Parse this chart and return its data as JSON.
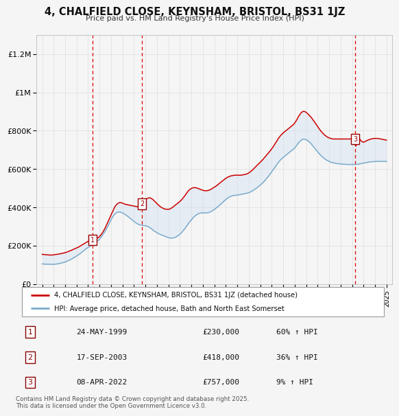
{
  "title": "4, CHALFIELD CLOSE, KEYNSHAM, BRISTOL, BS31 1JZ",
  "subtitle": "Price paid vs. HM Land Registry's House Price Index (HPI)",
  "ylabel_ticks": [
    "£0",
    "£200K",
    "£400K",
    "£600K",
    "£800K",
    "£1M",
    "£1.2M"
  ],
  "ytick_values": [
    0,
    200000,
    400000,
    600000,
    800000,
    1000000,
    1200000
  ],
  "ylim": [
    0,
    1300000
  ],
  "xlim_start": 1994.5,
  "xlim_end": 2025.5,
  "sale_dates": [
    1999.38,
    2003.71,
    2022.27
  ],
  "sale_prices": [
    230000,
    418000,
    757000
  ],
  "sale_labels": [
    "1",
    "2",
    "3"
  ],
  "sale_date_strs": [
    "24-MAY-1999",
    "17-SEP-2003",
    "08-APR-2022"
  ],
  "sale_price_strs": [
    "£230,000",
    "£418,000",
    "£757,000"
  ],
  "sale_hpi_strs": [
    "60% ↑ HPI",
    "36% ↑ HPI",
    "9% ↑ HPI"
  ],
  "red_line_color": "#cc0000",
  "blue_line_color": "#7aaacc",
  "shade_color": "#c8ddf0",
  "dashed_line_color": "#dd0000",
  "background_color": "#f5f5f5",
  "grid_color": "#dddddd",
  "legend_line1": "4, CHALFIELD CLOSE, KEYNSHAM, BRISTOL, BS31 1JZ (detached house)",
  "legend_line2": "HPI: Average price, detached house, Bath and North East Somerset",
  "footer": "Contains HM Land Registry data © Crown copyright and database right 2025.\nThis data is licensed under the Open Government Licence v3.0.",
  "red_x": [
    1995.0,
    1995.08,
    1995.17,
    1995.25,
    1995.33,
    1995.42,
    1995.5,
    1995.58,
    1995.67,
    1995.75,
    1995.83,
    1995.92,
    1996.0,
    1996.08,
    1996.17,
    1996.25,
    1996.33,
    1996.42,
    1996.5,
    1996.58,
    1996.67,
    1996.75,
    1996.83,
    1996.92,
    1997.0,
    1997.08,
    1997.17,
    1997.25,
    1997.33,
    1997.42,
    1997.5,
    1997.58,
    1997.67,
    1997.75,
    1997.83,
    1997.92,
    1998.0,
    1998.08,
    1998.17,
    1998.25,
    1998.33,
    1998.42,
    1998.5,
    1998.58,
    1998.67,
    1998.75,
    1998.83,
    1998.92,
    1999.0,
    1999.08,
    1999.17,
    1999.25,
    1999.33,
    1999.42,
    1999.5,
    1999.58,
    1999.67,
    1999.75,
    1999.83,
    1999.92,
    2000.0,
    2000.08,
    2000.17,
    2000.25,
    2000.33,
    2000.42,
    2000.5,
    2000.58,
    2000.67,
    2000.75,
    2000.83,
    2000.92,
    2001.0,
    2001.08,
    2001.17,
    2001.25,
    2001.33,
    2001.42,
    2001.5,
    2001.58,
    2001.67,
    2001.75,
    2001.83,
    2001.92,
    2002.0,
    2002.08,
    2002.17,
    2002.25,
    2002.33,
    2002.42,
    2002.5,
    2002.58,
    2002.67,
    2002.75,
    2002.83,
    2002.92,
    2003.0,
    2003.08,
    2003.17,
    2003.25,
    2003.33,
    2003.42,
    2003.5,
    2003.58,
    2003.67,
    2003.75,
    2003.83,
    2003.92,
    2004.0,
    2004.08,
    2004.17,
    2004.25,
    2004.33,
    2004.42,
    2004.5,
    2004.58,
    2004.67,
    2004.75,
    2004.83,
    2004.92,
    2005.0,
    2005.08,
    2005.17,
    2005.25,
    2005.33,
    2005.42,
    2005.5,
    2005.58,
    2005.67,
    2005.75,
    2005.83,
    2005.92,
    2006.0,
    2006.08,
    2006.17,
    2006.25,
    2006.33,
    2006.42,
    2006.5,
    2006.58,
    2006.67,
    2006.75,
    2006.83,
    2006.92,
    2007.0,
    2007.08,
    2007.17,
    2007.25,
    2007.33,
    2007.42,
    2007.5,
    2007.58,
    2007.67,
    2007.75,
    2007.83,
    2007.92,
    2008.0,
    2008.08,
    2008.17,
    2008.25,
    2008.33,
    2008.42,
    2008.5,
    2008.58,
    2008.67,
    2008.75,
    2008.83,
    2008.92,
    2009.0,
    2009.08,
    2009.17,
    2009.25,
    2009.33,
    2009.42,
    2009.5,
    2009.58,
    2009.67,
    2009.75,
    2009.83,
    2009.92,
    2010.0,
    2010.08,
    2010.17,
    2010.25,
    2010.33,
    2010.42,
    2010.5,
    2010.58,
    2010.67,
    2010.75,
    2010.83,
    2010.92,
    2011.0,
    2011.08,
    2011.17,
    2011.25,
    2011.33,
    2011.42,
    2011.5,
    2011.58,
    2011.67,
    2011.75,
    2011.83,
    2011.92,
    2012.0,
    2012.08,
    2012.17,
    2012.25,
    2012.33,
    2012.42,
    2012.5,
    2012.58,
    2012.67,
    2012.75,
    2012.83,
    2012.92,
    2013.0,
    2013.08,
    2013.17,
    2013.25,
    2013.33,
    2013.42,
    2013.5,
    2013.58,
    2013.67,
    2013.75,
    2013.83,
    2013.92,
    2014.0,
    2014.08,
    2014.17,
    2014.25,
    2014.33,
    2014.42,
    2014.5,
    2014.58,
    2014.67,
    2014.75,
    2014.83,
    2014.92,
    2015.0,
    2015.08,
    2015.17,
    2015.25,
    2015.33,
    2015.42,
    2015.5,
    2015.58,
    2015.67,
    2015.75,
    2015.83,
    2015.92,
    2016.0,
    2016.08,
    2016.17,
    2016.25,
    2016.33,
    2016.42,
    2016.5,
    2016.58,
    2016.67,
    2016.75,
    2016.83,
    2016.92,
    2017.0,
    2017.08,
    2017.17,
    2017.25,
    2017.33,
    2017.42,
    2017.5,
    2017.58,
    2017.67,
    2017.75,
    2017.83,
    2017.92,
    2018.0,
    2018.08,
    2018.17,
    2018.25,
    2018.33,
    2018.42,
    2018.5,
    2018.58,
    2018.67,
    2018.75,
    2018.83,
    2018.92,
    2019.0,
    2019.08,
    2019.17,
    2019.25,
    2019.33,
    2019.42,
    2019.5,
    2019.58,
    2019.67,
    2019.75,
    2019.83,
    2019.92,
    2020.0,
    2020.08,
    2020.17,
    2020.25,
    2020.33,
    2020.42,
    2020.5,
    2020.58,
    2020.67,
    2020.75,
    2020.83,
    2020.92,
    2021.0,
    2021.08,
    2021.17,
    2021.25,
    2021.33,
    2021.42,
    2021.5,
    2021.58,
    2021.67,
    2021.75,
    2021.83,
    2021.92,
    2022.0,
    2022.08,
    2022.17,
    2022.25,
    2022.33,
    2022.42,
    2022.5,
    2022.58,
    2022.67,
    2022.75,
    2022.83,
    2022.92,
    2023.0,
    2023.08,
    2023.17,
    2023.25,
    2023.33,
    2023.42,
    2023.5,
    2023.58,
    2023.67,
    2023.75,
    2023.83,
    2023.92,
    2024.0,
    2024.08,
    2024.17,
    2024.25,
    2024.33,
    2024.42,
    2024.5,
    2024.58,
    2024.67,
    2024.75,
    2024.83,
    2024.92,
    2025.0
  ],
  "red_y": [
    155000,
    154500,
    154000,
    153500,
    153000,
    152500,
    152000,
    151500,
    151200,
    151000,
    151200,
    151800,
    152500,
    153200,
    154000,
    154800,
    155500,
    156200,
    157000,
    158000,
    159000,
    160000,
    161000,
    162000,
    163500,
    165000,
    167000,
    169000,
    171000,
    173000,
    175000,
    177000,
    179500,
    182000,
    184000,
    186000,
    188000,
    190500,
    193000,
    196000,
    199000,
    202000,
    205000,
    208000,
    211000,
    214000,
    217000,
    220000,
    223000,
    225000,
    227500,
    229000,
    230000,
    230000,
    231000,
    232500,
    235000,
    238000,
    241000,
    244000,
    248000,
    254000,
    261000,
    268000,
    276000,
    285000,
    294000,
    305000,
    316000,
    327000,
    338000,
    349000,
    360000,
    371000,
    382000,
    393000,
    403000,
    410000,
    416000,
    420000,
    423000,
    425000,
    425000,
    424000,
    422000,
    420000,
    418000,
    416000,
    415000,
    414000,
    413000,
    412000,
    411000,
    410000,
    409000,
    408000,
    407000,
    406000,
    405000,
    404000,
    404000,
    406000,
    409000,
    413000,
    418000,
    423000,
    429000,
    435000,
    440000,
    444000,
    447000,
    449000,
    450000,
    449000,
    447000,
    444000,
    440000,
    435000,
    430000,
    425000,
    420000,
    415000,
    410000,
    406000,
    402000,
    399000,
    396000,
    394000,
    392000,
    391000,
    390000,
    390000,
    390000,
    391000,
    393000,
    396000,
    399000,
    403000,
    407000,
    411000,
    415000,
    419000,
    423000,
    427000,
    431000,
    436000,
    441000,
    447000,
    453000,
    460000,
    467000,
    474000,
    481000,
    487000,
    492000,
    496000,
    499000,
    501000,
    503000,
    503000,
    503000,
    502000,
    501000,
    499000,
    497000,
    495000,
    493000,
    491000,
    489000,
    488000,
    487000,
    487000,
    487000,
    488000,
    489000,
    491000,
    493000,
    496000,
    499000,
    502000,
    505000,
    508000,
    512000,
    516000,
    520000,
    524000,
    528000,
    532000,
    536000,
    540000,
    544000,
    548000,
    552000,
    555000,
    558000,
    560000,
    562000,
    564000,
    565000,
    566000,
    567000,
    568000,
    568000,
    568000,
    568000,
    568000,
    568000,
    568000,
    568000,
    569000,
    570000,
    571000,
    572000,
    573000,
    575000,
    577000,
    580000,
    583000,
    587000,
    591000,
    596000,
    601000,
    606000,
    611000,
    616000,
    621000,
    626000,
    631000,
    636000,
    641000,
    646000,
    651000,
    657000,
    663000,
    669000,
    675000,
    681000,
    687000,
    693000,
    699000,
    706000,
    713000,
    720000,
    728000,
    736000,
    744000,
    752000,
    760000,
    767000,
    773000,
    779000,
    784000,
    789000,
    793000,
    797000,
    801000,
    805000,
    809000,
    813000,
    817000,
    821000,
    825000,
    829000,
    834000,
    840000,
    847000,
    856000,
    865000,
    874000,
    882000,
    889000,
    895000,
    899000,
    901000,
    901000,
    899000,
    896000,
    892000,
    887000,
    882000,
    877000,
    871000,
    865000,
    858000,
    851000,
    844000,
    837000,
    830000,
    822000,
    815000,
    808000,
    801000,
    795000,
    789000,
    784000,
    779000,
    775000,
    771000,
    768000,
    765000,
    763000,
    761000,
    759000,
    758000,
    757000,
    757000,
    757000,
    757000,
    757000,
    757000,
    757000,
    757000,
    757000,
    757000,
    757000,
    757000,
    757000,
    757000,
    757000,
    757000,
    757000,
    757000,
    757000,
    757000,
    757000,
    757000,
    750000,
    730000,
    720000,
    730000,
    750000,
    760000,
    757000,
    750000,
    745000,
    742000,
    740000,
    742000,
    745000,
    748000,
    750000,
    752000,
    754000,
    756000,
    757000,
    758000,
    759000,
    760000,
    760000,
    760000,
    760000,
    760000,
    759000,
    758000,
    757000,
    756000,
    755000,
    754000,
    753000,
    752000,
    751000
  ],
  "blue_y": [
    105000,
    104500,
    104200,
    104000,
    103800,
    103500,
    103200,
    103000,
    102800,
    102600,
    102500,
    102600,
    102800,
    103200,
    103800,
    104500,
    105200,
    106000,
    107000,
    108200,
    109500,
    110800,
    112200,
    113600,
    115000,
    117000,
    119000,
    121000,
    123500,
    126000,
    128500,
    131000,
    134000,
    137000,
    140000,
    143000,
    146000,
    149000,
    152500,
    156000,
    160000,
    164000,
    168000,
    172000,
    176000,
    180000,
    184000,
    188000,
    191000,
    194500,
    198000,
    200000,
    202000,
    204000,
    207000,
    211000,
    215000,
    219000,
    224000,
    229000,
    234000,
    240000,
    247000,
    254000,
    261000,
    269000,
    277000,
    286000,
    295000,
    305000,
    315000,
    325000,
    335000,
    344000,
    352000,
    359000,
    365000,
    370000,
    373000,
    375000,
    376000,
    376000,
    375000,
    373000,
    371000,
    368000,
    365000,
    362000,
    358000,
    355000,
    351000,
    347000,
    343000,
    339000,
    335000,
    331000,
    327000,
    323000,
    319000,
    316000,
    313000,
    311000,
    309000,
    308000,
    307000,
    306000,
    305000,
    305000,
    304000,
    303000,
    301000,
    299000,
    296000,
    293000,
    289000,
    285000,
    281000,
    277000,
    274000,
    271000,
    268000,
    265000,
    262000,
    260000,
    258000,
    256000,
    254000,
    252000,
    250000,
    248000,
    246000,
    244000,
    242000,
    241000,
    240000,
    240000,
    240000,
    241000,
    242000,
    244000,
    246000,
    249000,
    252000,
    256000,
    260000,
    265000,
    270000,
    276000,
    282000,
    288000,
    295000,
    302000,
    309000,
    316000,
    323000,
    329000,
    335000,
    341000,
    347000,
    352000,
    356000,
    360000,
    363000,
    366000,
    368000,
    370000,
    371000,
    371000,
    371000,
    371000,
    371000,
    371000,
    371000,
    372000,
    373000,
    375000,
    377000,
    380000,
    383000,
    386000,
    389000,
    393000,
    397000,
    401000,
    405000,
    409000,
    413000,
    418000,
    422000,
    427000,
    432000,
    437000,
    441000,
    445000,
    449000,
    452000,
    455000,
    457000,
    459000,
    461000,
    462000,
    463000,
    463000,
    464000,
    464000,
    465000,
    466000,
    467000,
    468000,
    469000,
    470000,
    471000,
    472000,
    473000,
    474000,
    475000,
    477000,
    479000,
    481000,
    484000,
    487000,
    490000,
    493000,
    496000,
    500000,
    504000,
    508000,
    512000,
    516000,
    520000,
    525000,
    530000,
    535000,
    541000,
    547000,
    553000,
    559000,
    565000,
    572000,
    579000,
    586000,
    593000,
    600000,
    607000,
    614000,
    621000,
    628000,
    635000,
    641000,
    647000,
    652000,
    657000,
    661000,
    665000,
    669000,
    673000,
    677000,
    681000,
    685000,
    689000,
    693000,
    697000,
    701000,
    705000,
    710000,
    716000,
    723000,
    730000,
    736000,
    742000,
    747000,
    751000,
    754000,
    756000,
    756000,
    755000,
    753000,
    750000,
    747000,
    743000,
    738000,
    733000,
    727000,
    721000,
    715000,
    709000,
    702000,
    696000,
    690000,
    684000,
    678000,
    673000,
    668000,
    663000,
    659000,
    655000,
    651000,
    648000,
    645000,
    642000,
    640000,
    638000,
    636000,
    634000,
    633000,
    632000,
    631000,
    630000,
    629000,
    628000,
    628000,
    627000,
    627000,
    626000,
    626000,
    625000,
    625000,
    625000,
    624000,
    624000,
    624000,
    624000,
    624000,
    624000,
    624000,
    624000,
    624000,
    624000,
    624000,
    625000,
    625000,
    626000,
    627000,
    628000,
    629000,
    630000,
    631000,
    632000,
    633000,
    634000,
    635000,
    636000,
    637000,
    637000,
    638000,
    638000,
    639000,
    639000,
    639000,
    640000,
    640000,
    640000,
    640000,
    640000,
    640000,
    640000,
    640000,
    640000,
    640000,
    640000,
    640000
  ]
}
